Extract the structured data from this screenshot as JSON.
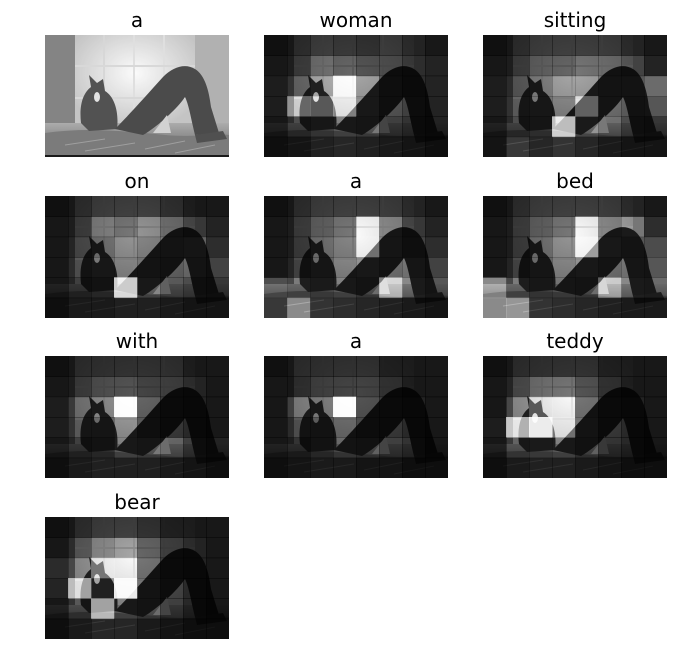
{
  "panels": [
    {
      "word": "a",
      "kind": "original"
    },
    {
      "word": "woman",
      "kind": "attention",
      "weights": [
        [
          0.0,
          0.05,
          0.1,
          0.08,
          0.05,
          0.1,
          0.05,
          0.0
        ],
        [
          0.05,
          0.1,
          0.25,
          0.2,
          0.15,
          0.15,
          0.1,
          0.05
        ],
        [
          0.1,
          0.25,
          0.45,
          0.9,
          0.4,
          0.2,
          0.1,
          0.05
        ],
        [
          0.1,
          0.55,
          0.5,
          0.65,
          0.4,
          0.2,
          0.15,
          0.05
        ],
        [
          0.05,
          0.2,
          0.3,
          0.4,
          0.35,
          0.15,
          0.1,
          0.05
        ],
        [
          0.0,
          0.05,
          0.15,
          0.2,
          0.15,
          0.1,
          0.05,
          0.0
        ]
      ]
    },
    {
      "word": "sitting",
      "kind": "attention",
      "weights": [
        [
          0.0,
          0.05,
          0.1,
          0.1,
          0.1,
          0.1,
          0.05,
          0.0
        ],
        [
          0.05,
          0.1,
          0.2,
          0.2,
          0.25,
          0.25,
          0.2,
          0.05
        ],
        [
          0.1,
          0.2,
          0.3,
          0.4,
          0.4,
          0.3,
          0.3,
          0.4
        ],
        [
          0.1,
          0.25,
          0.3,
          0.35,
          0.55,
          0.3,
          0.25,
          0.3
        ],
        [
          0.05,
          0.2,
          0.25,
          0.85,
          0.45,
          0.35,
          0.2,
          0.15
        ],
        [
          0.05,
          0.35,
          0.2,
          0.3,
          0.2,
          0.1,
          0.05,
          0.05
        ]
      ]
    },
    {
      "word": "on",
      "kind": "attention",
      "weights": [
        [
          0.0,
          0.05,
          0.1,
          0.1,
          0.1,
          0.05,
          0.0,
          0.0
        ],
        [
          0.05,
          0.1,
          0.3,
          0.25,
          0.35,
          0.25,
          0.15,
          0.05
        ],
        [
          0.05,
          0.15,
          0.25,
          0.35,
          0.3,
          0.3,
          0.35,
          0.1
        ],
        [
          0.05,
          0.2,
          0.3,
          0.35,
          0.3,
          0.25,
          0.3,
          0.2
        ],
        [
          0.05,
          0.15,
          0.2,
          0.9,
          0.4,
          0.25,
          0.2,
          0.15
        ],
        [
          0.0,
          0.1,
          0.1,
          0.15,
          0.15,
          0.1,
          0.05,
          0.05
        ]
      ]
    },
    {
      "word": "a",
      "kind": "attention",
      "weights": [
        [
          0.0,
          0.05,
          0.1,
          0.1,
          0.1,
          0.1,
          0.05,
          0.0
        ],
        [
          0.05,
          0.1,
          0.2,
          0.25,
          0.55,
          0.35,
          0.15,
          0.05
        ],
        [
          0.05,
          0.1,
          0.25,
          0.3,
          0.6,
          0.35,
          0.2,
          0.1
        ],
        [
          0.05,
          0.15,
          0.25,
          0.35,
          0.4,
          0.3,
          0.35,
          0.2
        ],
        [
          0.45,
          0.4,
          0.35,
          0.4,
          0.3,
          0.65,
          0.45,
          0.3
        ],
        [
          0.35,
          0.55,
          0.3,
          0.25,
          0.2,
          0.15,
          0.1,
          0.05
        ]
      ]
    },
    {
      "word": "bed",
      "kind": "attention",
      "weights": [
        [
          0.0,
          0.05,
          0.1,
          0.1,
          0.1,
          0.1,
          0.05,
          0.0
        ],
        [
          0.05,
          0.1,
          0.2,
          0.25,
          0.5,
          0.35,
          0.45,
          0.1
        ],
        [
          0.05,
          0.1,
          0.25,
          0.35,
          0.75,
          0.4,
          0.3,
          0.25
        ],
        [
          0.05,
          0.15,
          0.25,
          0.35,
          0.4,
          0.3,
          0.35,
          0.3
        ],
        [
          0.5,
          0.4,
          0.3,
          0.35,
          0.3,
          0.55,
          0.45,
          0.4
        ],
        [
          0.55,
          0.6,
          0.3,
          0.25,
          0.2,
          0.15,
          0.1,
          0.1
        ]
      ]
    },
    {
      "word": "with",
      "kind": "attention",
      "weights": [
        [
          0.0,
          0.05,
          0.05,
          0.05,
          0.05,
          0.05,
          0.0,
          0.0
        ],
        [
          0.05,
          0.1,
          0.15,
          0.15,
          0.1,
          0.1,
          0.05,
          0.0
        ],
        [
          0.1,
          0.3,
          0.35,
          1.0,
          0.2,
          0.1,
          0.05,
          0.0
        ],
        [
          0.1,
          0.25,
          0.25,
          0.4,
          0.2,
          0.1,
          0.05,
          0.0
        ],
        [
          0.05,
          0.15,
          0.2,
          0.4,
          0.35,
          0.3,
          0.15,
          0.05
        ],
        [
          0.0,
          0.1,
          0.15,
          0.15,
          0.15,
          0.1,
          0.05,
          0.0
        ]
      ]
    },
    {
      "word": "a",
      "kind": "attention",
      "weights": [
        [
          0.0,
          0.05,
          0.05,
          0.05,
          0.05,
          0.0,
          0.0,
          0.0
        ],
        [
          0.05,
          0.05,
          0.1,
          0.1,
          0.1,
          0.05,
          0.0,
          0.0
        ],
        [
          0.05,
          0.35,
          0.3,
          1.0,
          0.15,
          0.1,
          0.05,
          0.0
        ],
        [
          0.05,
          0.2,
          0.2,
          0.25,
          0.15,
          0.1,
          0.05,
          0.0
        ],
        [
          0.05,
          0.1,
          0.2,
          0.3,
          0.25,
          0.15,
          0.1,
          0.0
        ],
        [
          0.0,
          0.05,
          0.1,
          0.1,
          0.05,
          0.05,
          0.0,
          0.0
        ]
      ]
    },
    {
      "word": "teddy",
      "kind": "attention",
      "weights": [
        [
          0.0,
          0.05,
          0.05,
          0.05,
          0.05,
          0.0,
          0.0,
          0.0
        ],
        [
          0.05,
          0.15,
          0.25,
          0.25,
          0.15,
          0.05,
          0.0,
          0.0
        ],
        [
          0.05,
          0.4,
          0.5,
          0.55,
          0.25,
          0.1,
          0.05,
          0.0
        ],
        [
          0.1,
          0.8,
          1.0,
          0.6,
          0.3,
          0.1,
          0.05,
          0.0
        ],
        [
          0.05,
          0.3,
          0.35,
          0.4,
          0.25,
          0.1,
          0.05,
          0.0
        ],
        [
          0.0,
          0.1,
          0.15,
          0.15,
          0.1,
          0.05,
          0.0,
          0.0
        ]
      ]
    },
    {
      "word": "bear",
      "kind": "attention",
      "weights": [
        [
          0.0,
          0.05,
          0.1,
          0.1,
          0.05,
          0.0,
          0.0,
          0.0
        ],
        [
          0.05,
          0.2,
          0.35,
          0.4,
          0.2,
          0.1,
          0.05,
          0.0
        ],
        [
          0.2,
          0.4,
          0.6,
          0.55,
          0.25,
          0.1,
          0.05,
          0.0
        ],
        [
          0.15,
          0.75,
          0.45,
          1.0,
          0.3,
          0.15,
          0.05,
          0.0
        ],
        [
          0.05,
          0.25,
          0.75,
          0.4,
          0.3,
          0.15,
          0.05,
          0.0
        ],
        [
          0.0,
          0.1,
          0.2,
          0.2,
          0.1,
          0.05,
          0.0,
          0.0
        ]
      ]
    }
  ]
}
